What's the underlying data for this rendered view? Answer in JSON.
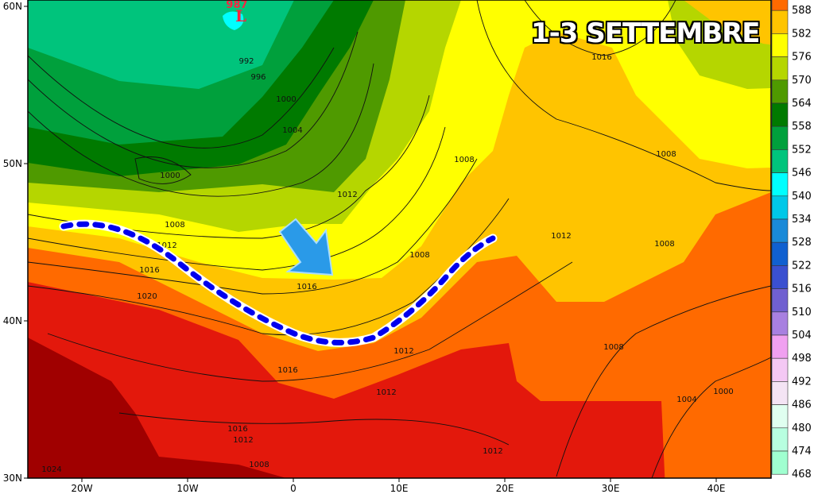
{
  "title": "1-3 SETTEMBRE",
  "low_center": {
    "symbol": "L",
    "pressure": "987",
    "color": "#ff2040"
  },
  "axes": {
    "y_ticks": [
      "60N",
      "50N",
      "40N",
      "30N"
    ],
    "x_ticks": [
      "20W",
      "10W",
      "0",
      "10E",
      "20E",
      "30E",
      "40E"
    ]
  },
  "legend": {
    "labels": [
      "588",
      "582",
      "576",
      "570",
      "564",
      "558",
      "552",
      "546",
      "540",
      "534",
      "528",
      "522",
      "516",
      "510",
      "504",
      "498",
      "492",
      "486",
      "480",
      "474",
      "468"
    ],
    "colors": [
      "#ff6a00",
      "#ffc400",
      "#ffff00",
      "#b5d600",
      "#4f9a00",
      "#007a00",
      "#00a03c",
      "#00c47c",
      "#00ffff",
      "#00c8e8",
      "#1a8ad8",
      "#1060d0",
      "#3a50d0",
      "#7060d0",
      "#a880e0",
      "#f0a0f0",
      "#f4c8f4",
      "#f4e4f4",
      "#e0fff0",
      "#b8ffe0",
      "#a0ffd0"
    ]
  },
  "field_colors": {
    "dark_red": "#a00000",
    "red": "#e3180c",
    "orange": "#ff6a00",
    "light_orange": "#ffc400",
    "yellow": "#ffff00",
    "yellow_green": "#b5d600",
    "green": "#4f9a00",
    "dark_green": "#007a00",
    "mid_green": "#00a03c",
    "sea_green": "#00c47c",
    "cyan": "#00ffff"
  },
  "isobar_labels": [
    "992",
    "996",
    "1000",
    "1004",
    "1000",
    "1008",
    "1012",
    "1016",
    "1020",
    "1012",
    "1008",
    "1008",
    "1016",
    "1016",
    "1012",
    "1012",
    "1016",
    "1012",
    "1008",
    "1024",
    "1012",
    "1008",
    "1004",
    "1000",
    "1012",
    "1008",
    "1008",
    "1016"
  ],
  "annotations": {
    "trough_line_color": "#0000ee",
    "arrow_color": "#2a9ae8"
  }
}
